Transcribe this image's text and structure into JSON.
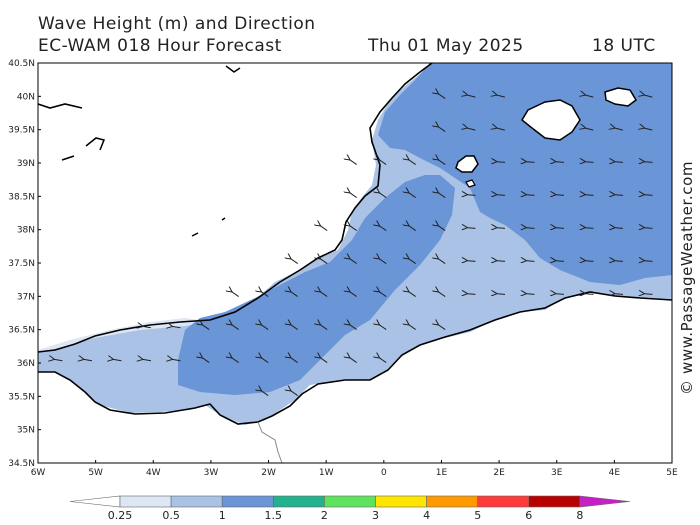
{
  "header": {
    "title": "Wave Height (m) and Direction",
    "model": "EC-WAM 018 Hour Forecast",
    "date": "Thu 01 May 2025",
    "time": "18 UTC"
  },
  "credit": "© www.PassageWeather.com",
  "axes": {
    "lat_labels": [
      "40.5N",
      "40N",
      "39.5N",
      "39N",
      "38.5N",
      "38N",
      "37.5N",
      "37N",
      "36.5N",
      "36N",
      "35.5N",
      "35N",
      "34.5N"
    ],
    "lon_labels": [
      "6W",
      "5W",
      "4W",
      "3W",
      "2W",
      "1W",
      "0",
      "1E",
      "2E",
      "3E",
      "4E",
      "5E"
    ]
  },
  "legend": {
    "ticks": [
      "0.25",
      "0.5",
      "1",
      "1.5",
      "2",
      "3",
      "4",
      "5",
      "6",
      "8"
    ],
    "colors": [
      "#ffffff",
      "#dde6f5",
      "#a9c2e6",
      "#6a95d6",
      "#22b28e",
      "#5fe35f",
      "#ffe600",
      "#ff9900",
      "#ff3a3a",
      "#b80000",
      "#c81ec8"
    ]
  },
  "colors": {
    "sea_low": "#dde6f5",
    "sea_mid": "#a9c2e6",
    "sea_high": "#6a95d6",
    "land": "#ffffff",
    "coast": "#000000"
  }
}
